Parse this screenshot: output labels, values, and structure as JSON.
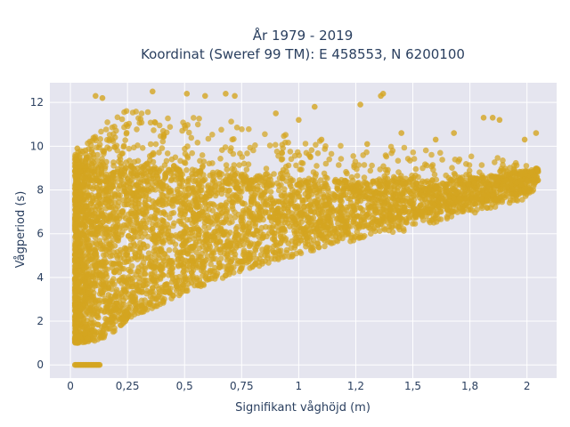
{
  "chart_data": {
    "type": "scatter",
    "title_line1": "År 1979 - 2019",
    "title_line2": "Koordinat (Sweref 99 TM): E 458553, N 6200100",
    "xlabel": "Signifikant våghöjd (m)",
    "ylabel": "Vågperiod (s)",
    "xlim": [
      -0.09,
      2.13
    ],
    "ylim": [
      -0.6,
      12.9
    ],
    "x_ticks": [
      0,
      0.25,
      0.5,
      0.75,
      1,
      1.25,
      1.5,
      1.75,
      2
    ],
    "x_tick_labels": [
      "0",
      "0,25",
      "0,5",
      "0,75",
      "1",
      "1,2",
      "1,5",
      "1,8",
      "2"
    ],
    "y_ticks": [
      0,
      2,
      4,
      6,
      8,
      10,
      12
    ],
    "y_tick_labels": [
      "0",
      "2",
      "4",
      "6",
      "8",
      "10",
      "12"
    ],
    "grid": true,
    "plot_bg_color": "#e5e5ef",
    "marker_color": "#d4a520",
    "series": [
      {
        "envelope_lower": [
          [
            0.02,
            1.0
          ],
          [
            0.14,
            1.1
          ],
          [
            0.25,
            2.0
          ],
          [
            0.5,
            3.3
          ],
          [
            0.75,
            4.3
          ],
          [
            1.0,
            5.0
          ],
          [
            1.25,
            5.7
          ],
          [
            1.5,
            6.2
          ],
          [
            1.75,
            6.9
          ],
          [
            2.0,
            7.6
          ],
          [
            2.05,
            8.3
          ]
        ],
        "envelope_upper": [
          [
            0.02,
            9.6
          ],
          [
            0.08,
            10.2
          ],
          [
            0.13,
            11.0
          ],
          [
            0.25,
            11.7
          ],
          [
            0.5,
            11.5
          ],
          [
            0.75,
            11.1
          ],
          [
            1.0,
            10.4
          ],
          [
            1.25,
            10.2
          ],
          [
            1.5,
            9.9
          ],
          [
            1.75,
            9.6
          ],
          [
            2.0,
            9.5
          ],
          [
            2.05,
            8.8
          ]
        ],
        "dense_lower": [
          [
            0.02,
            1.3
          ],
          [
            0.25,
            2.5
          ],
          [
            0.5,
            3.8
          ],
          [
            0.75,
            4.8
          ],
          [
            1.0,
            5.5
          ],
          [
            1.25,
            6.2
          ],
          [
            1.5,
            6.7
          ],
          [
            1.75,
            7.3
          ],
          [
            2.0,
            7.9
          ],
          [
            2.05,
            8.5
          ]
        ],
        "dense_upper": [
          [
            0.02,
            8.8
          ],
          [
            0.25,
            9.0
          ],
          [
            0.5,
            8.9
          ],
          [
            0.75,
            8.7
          ],
          [
            1.0,
            8.5
          ],
          [
            1.25,
            8.4
          ],
          [
            1.5,
            8.4
          ],
          [
            1.75,
            8.5
          ],
          [
            2.0,
            8.9
          ],
          [
            2.05,
            9.0
          ]
        ],
        "zero_period_segment": {
          "x": [
            0.02,
            0.13
          ],
          "y": 0
        },
        "outliers": [
          [
            0.11,
            12.3
          ],
          [
            0.14,
            12.2
          ],
          [
            0.36,
            12.5
          ],
          [
            0.51,
            12.4
          ],
          [
            0.59,
            12.3
          ],
          [
            0.68,
            12.4
          ],
          [
            0.72,
            12.3
          ],
          [
            1.37,
            12.4
          ],
          [
            1.36,
            12.3
          ],
          [
            1.27,
            11.9
          ],
          [
            1.07,
            11.8
          ],
          [
            1.6,
            10.3
          ],
          [
            1.68,
            10.6
          ],
          [
            1.81,
            11.3
          ],
          [
            1.85,
            11.3
          ],
          [
            1.88,
            11.2
          ],
          [
            1.99,
            10.3
          ],
          [
            2.04,
            10.6
          ],
          [
            0.03,
            9.9
          ],
          [
            1.1,
            10.3
          ],
          [
            1.3,
            10.1
          ],
          [
            1.45,
            10.6
          ],
          [
            0.9,
            11.5
          ],
          [
            1.0,
            11.2
          ]
        ]
      }
    ]
  }
}
